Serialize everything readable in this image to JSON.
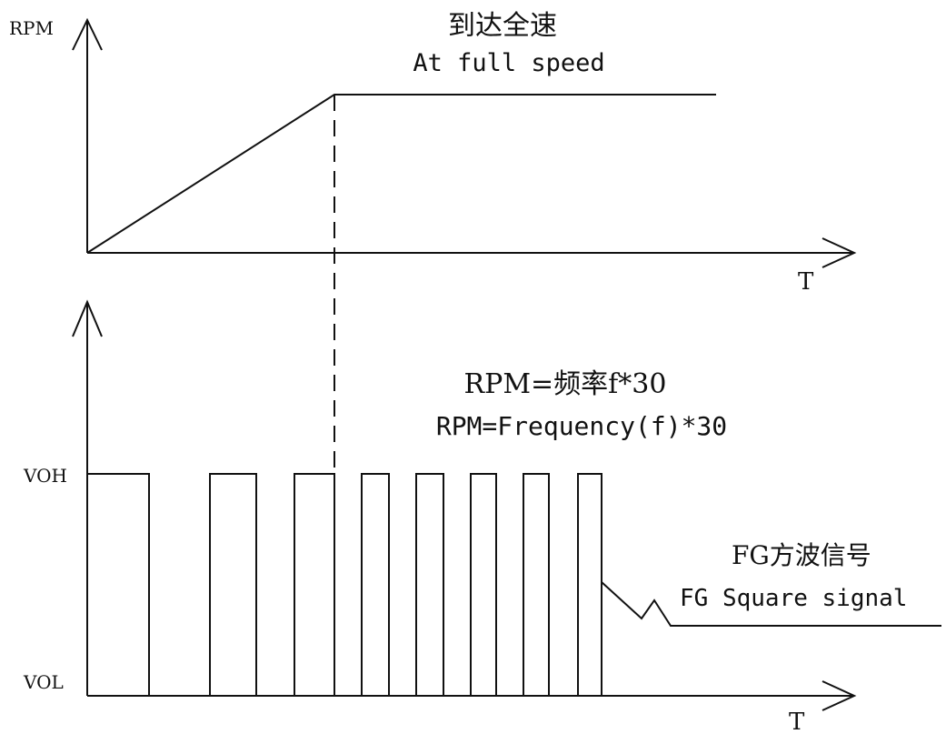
{
  "top_plot": {
    "y_axis_label": "RPM",
    "x_axis_label": "T",
    "annotation_cn": "到达全速",
    "annotation_en": "At full speed"
  },
  "bottom_plot": {
    "formula_cn": "RPM=频率f*30",
    "formula_en": "RPM=Frequency(f)*30",
    "voh_label": "VOH",
    "vol_label": "VOL",
    "x_axis_label": "T",
    "signal_cn": "FG方波信号",
    "signal_en": "FG Square signal"
  }
}
